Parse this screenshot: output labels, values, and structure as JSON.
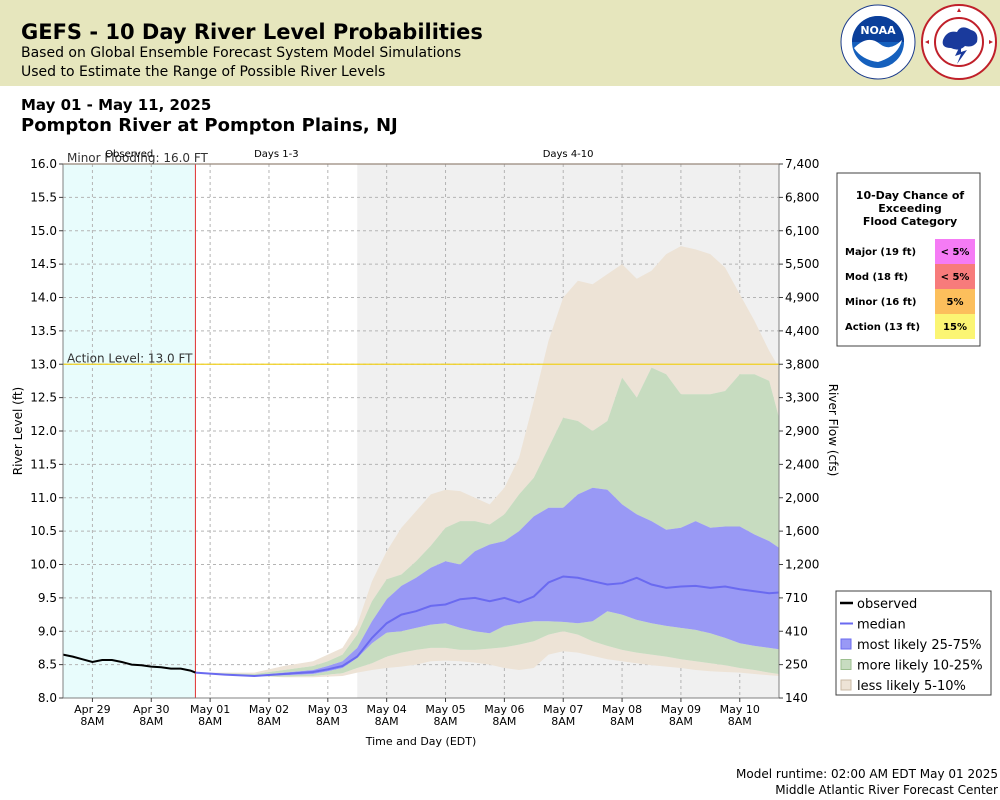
{
  "header": {
    "title": "GEFS - 10 Day River Level Probabilities",
    "subtitle1": "Based on Global Ensemble Forecast System Model Simulations",
    "subtitle2": "Used to Estimate the Range of Possible River Levels",
    "logos": [
      "noaa-logo",
      "national-weather-service-logo"
    ]
  },
  "date_range": "May 01 - May 11, 2025",
  "station": "Pompton River at Pompton Plains, NJ",
  "footer": {
    "runtime": "Model runtime: 02:00 AM EDT May 01 2025",
    "center": "Middle Atlantic River Forecast Center"
  },
  "colors": {
    "observed_bg": "#e8fcfc",
    "days4_10_bg": "#f0f0f0",
    "median": "#6a6af0",
    "band_25_75": "#9999f5",
    "band_10_25": "#c7dcc0",
    "band_5_10": "#ede3d6",
    "minor_line": "#f0a060",
    "action_line": "#f0d020",
    "forecast_start_line": "#e03030"
  },
  "chart_data": {
    "type": "area",
    "xlabel": "Time and Day (EDT)",
    "ylabel": "River Level (ft)",
    "ylabel_right": "River Flow (cfs)",
    "ylim": [
      8.0,
      16.0
    ],
    "yticks": [
      "16.0",
      "15.5",
      "15.0",
      "14.5",
      "14.0",
      "13.5",
      "13.0",
      "12.5",
      "12.0",
      "11.5",
      "11.0",
      "10.5",
      "10.0",
      "9.5",
      "9.0",
      "8.5",
      "8.0"
    ],
    "yticks_right": [
      {
        "level": 16.0,
        "label": "7,400"
      },
      {
        "level": 15.5,
        "label": "6,800"
      },
      {
        "level": 15.0,
        "label": "6,100"
      },
      {
        "level": 14.5,
        "label": "5,500"
      },
      {
        "level": 14.0,
        "label": "4,900"
      },
      {
        "level": 13.5,
        "label": "4,400"
      },
      {
        "level": 13.0,
        "label": "3,800"
      },
      {
        "level": 12.5,
        "label": "3,300"
      },
      {
        "level": 12.0,
        "label": "2,900"
      },
      {
        "level": 11.5,
        "label": "2,400"
      },
      {
        "level": 11.0,
        "label": "2,000"
      },
      {
        "level": 10.5,
        "label": "1,600"
      },
      {
        "level": 10.0,
        "label": "1,200"
      },
      {
        "level": 9.5,
        "label": "710"
      },
      {
        "level": 9.0,
        "label": "410"
      },
      {
        "level": 8.5,
        "label": "250"
      },
      {
        "level": 8.0,
        "label": "140"
      }
    ],
    "xlim": [
      "2025-04-28T20:00",
      "2025-05-11T00:00"
    ],
    "xticks": [
      {
        "t": "2025-04-29T08:00",
        "date": "Apr 29",
        "time": "8AM"
      },
      {
        "t": "2025-04-30T08:00",
        "date": "Apr 30",
        "time": "8AM"
      },
      {
        "t": "2025-05-01T08:00",
        "date": "May 01",
        "time": "8AM"
      },
      {
        "t": "2025-05-02T08:00",
        "date": "May 02",
        "time": "8AM"
      },
      {
        "t": "2025-05-03T08:00",
        "date": "May 03",
        "time": "8AM"
      },
      {
        "t": "2025-05-04T08:00",
        "date": "May 04",
        "time": "8AM"
      },
      {
        "t": "2025-05-05T08:00",
        "date": "May 05",
        "time": "8AM"
      },
      {
        "t": "2025-05-06T08:00",
        "date": "May 06",
        "time": "8AM"
      },
      {
        "t": "2025-05-07T08:00",
        "date": "May 07",
        "time": "8AM"
      },
      {
        "t": "2025-05-08T08:00",
        "date": "May 08",
        "time": "8AM"
      },
      {
        "t": "2025-05-09T08:00",
        "date": "May 09",
        "time": "8AM"
      },
      {
        "t": "2025-05-10T08:00",
        "date": "May 10",
        "time": "8AM"
      }
    ],
    "regions": [
      {
        "label": "Observed",
        "start": "2025-04-28T20:00",
        "end": "2025-05-01T02:00"
      },
      {
        "label": "Days 1-3",
        "start": "2025-05-01T02:00",
        "end": "2025-05-03T20:00"
      },
      {
        "label": "Days 4-10",
        "start": "2025-05-03T20:00",
        "end": "2025-05-11T00:00"
      }
    ],
    "forecast_start": "2025-05-01T02:00",
    "thresholds": [
      {
        "label": "Minor Flooding: 16.0 FT",
        "level": 16.0,
        "color": "#f0a060"
      },
      {
        "label": "Action Level: 13.0 FT",
        "level": 13.0,
        "color": "#f0d020"
      }
    ],
    "observed": {
      "name": "observed",
      "t": [
        "2025-04-28T20:00",
        "2025-04-29T00:00",
        "2025-04-29T04:00",
        "2025-04-29T08:00",
        "2025-04-29T12:00",
        "2025-04-29T16:00",
        "2025-04-29T20:00",
        "2025-04-30T00:00",
        "2025-04-30T04:00",
        "2025-04-30T08:00",
        "2025-04-30T12:00",
        "2025-04-30T16:00",
        "2025-04-30T20:00",
        "2025-05-01T00:00",
        "2025-05-01T02:00"
      ],
      "level": [
        8.65,
        8.62,
        8.58,
        8.54,
        8.57,
        8.57,
        8.54,
        8.5,
        8.49,
        8.47,
        8.46,
        8.44,
        8.44,
        8.41,
        8.38
      ]
    },
    "forecast": {
      "t": [
        "2025-05-01T02:00",
        "2025-05-01T14:00",
        "2025-05-02T02:00",
        "2025-05-02T14:00",
        "2025-05-03T02:00",
        "2025-05-03T08:00",
        "2025-05-03T14:00",
        "2025-05-03T20:00",
        "2025-05-04T02:00",
        "2025-05-04T08:00",
        "2025-05-04T14:00",
        "2025-05-04T20:00",
        "2025-05-05T02:00",
        "2025-05-05T08:00",
        "2025-05-05T14:00",
        "2025-05-05T20:00",
        "2025-05-06T02:00",
        "2025-05-06T08:00",
        "2025-05-06T14:00",
        "2025-05-06T20:00",
        "2025-05-07T02:00",
        "2025-05-07T08:00",
        "2025-05-07T14:00",
        "2025-05-07T20:00",
        "2025-05-08T02:00",
        "2025-05-08T08:00",
        "2025-05-08T14:00",
        "2025-05-08T20:00",
        "2025-05-09T02:00",
        "2025-05-09T08:00",
        "2025-05-09T14:00",
        "2025-05-09T20:00",
        "2025-05-10T02:00",
        "2025-05-10T08:00",
        "2025-05-10T14:00",
        "2025-05-10T20:00",
        "2025-05-11T00:00"
      ],
      "p5": [
        8.38,
        8.35,
        8.33,
        8.31,
        8.31,
        8.32,
        8.33,
        8.38,
        8.42,
        8.45,
        8.47,
        8.5,
        8.55,
        8.56,
        8.55,
        8.53,
        8.5,
        8.45,
        8.42,
        8.45,
        8.65,
        8.7,
        8.68,
        8.63,
        8.58,
        8.55,
        8.52,
        8.49,
        8.47,
        8.45,
        8.42,
        8.4,
        8.39,
        8.38,
        8.36,
        8.34,
        8.33
      ],
      "p10": [
        8.38,
        8.35,
        8.33,
        8.32,
        8.33,
        8.35,
        8.37,
        8.45,
        8.52,
        8.62,
        8.68,
        8.72,
        8.75,
        8.75,
        8.72,
        8.72,
        8.74,
        8.76,
        8.8,
        8.85,
        8.95,
        9.0,
        8.95,
        8.85,
        8.78,
        8.72,
        8.68,
        8.65,
        8.62,
        8.58,
        8.55,
        8.52,
        8.49,
        8.45,
        8.42,
        8.38,
        8.36
      ],
      "p25": [
        8.38,
        8.35,
        8.33,
        8.34,
        8.36,
        8.4,
        8.45,
        8.6,
        8.82,
        8.98,
        9.0,
        9.05,
        9.1,
        9.12,
        9.05,
        9.0,
        8.97,
        9.08,
        9.12,
        9.15,
        9.15,
        9.14,
        9.12,
        9.15,
        9.3,
        9.25,
        9.17,
        9.12,
        9.08,
        9.05,
        9.02,
        8.97,
        8.9,
        8.82,
        8.78,
        8.75,
        8.73
      ],
      "p50": [
        8.38,
        8.35,
        8.33,
        8.36,
        8.39,
        8.43,
        8.48,
        8.62,
        8.9,
        9.12,
        9.25,
        9.3,
        9.38,
        9.4,
        9.48,
        9.5,
        9.45,
        9.5,
        9.43,
        9.52,
        9.73,
        9.82,
        9.8,
        9.75,
        9.7,
        9.72,
        9.8,
        9.7,
        9.65,
        9.67,
        9.68,
        9.65,
        9.67,
        9.63,
        9.6,
        9.57,
        9.58
      ],
      "p75": [
        8.38,
        8.36,
        8.34,
        8.38,
        8.42,
        8.48,
        8.55,
        8.75,
        9.15,
        9.48,
        9.68,
        9.8,
        9.95,
        10.05,
        10.0,
        10.2,
        10.3,
        10.35,
        10.5,
        10.72,
        10.85,
        10.85,
        11.05,
        11.15,
        11.12,
        10.9,
        10.75,
        10.65,
        10.52,
        10.55,
        10.65,
        10.55,
        10.57,
        10.57,
        10.45,
        10.35,
        10.25
      ],
      "p90": [
        8.38,
        8.37,
        8.36,
        8.42,
        8.48,
        8.55,
        8.65,
        8.95,
        9.45,
        9.78,
        9.85,
        10.05,
        10.28,
        10.55,
        10.65,
        10.65,
        10.6,
        10.75,
        11.05,
        11.3,
        11.75,
        12.2,
        12.15,
        12.0,
        12.15,
        12.8,
        12.5,
        12.95,
        12.85,
        12.55,
        12.55,
        12.55,
        12.6,
        12.85,
        12.85,
        12.75,
        12.2
      ],
      "p95": [
        8.38,
        8.38,
        8.38,
        8.48,
        8.55,
        8.65,
        8.75,
        9.1,
        9.75,
        10.2,
        10.55,
        10.8,
        11.05,
        11.12,
        11.1,
        11.0,
        10.9,
        11.15,
        11.6,
        12.45,
        13.35,
        14.0,
        14.25,
        14.2,
        14.35,
        14.5,
        14.28,
        14.4,
        14.65,
        14.77,
        14.72,
        14.65,
        14.45,
        14.05,
        13.65,
        13.2,
        12.95
      ]
    },
    "legend": [
      "observed",
      "median",
      "most likely 25-75%",
      "more likely 10-25%",
      "less likely 5-10%"
    ],
    "exceedance": {
      "title": [
        "10-Day Chance of",
        "Exceeding",
        "Flood Category"
      ],
      "rows": [
        {
          "category": "Major (19 ft)",
          "value": "< 5%",
          "color": "#f57bf5"
        },
        {
          "category": "Mod (18 ft)",
          "value": "< 5%",
          "color": "#f77b7b"
        },
        {
          "category": "Minor (16 ft)",
          "value": "5%",
          "color": "#fcbf5c"
        },
        {
          "category": "Action (13 ft)",
          "value": "15%",
          "color": "#fbf573"
        }
      ]
    }
  }
}
